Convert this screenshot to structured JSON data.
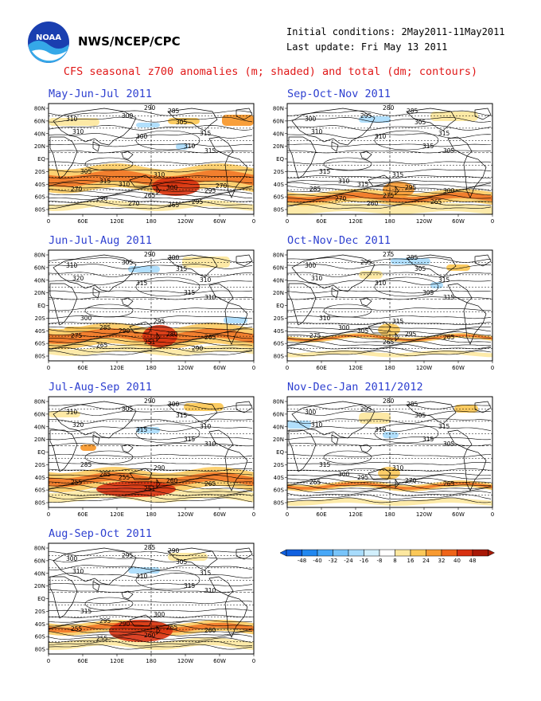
{
  "header": {
    "agency": "NWS/NCEP/CPC",
    "initial_conditions": "Initial conditions: 2May2011-11May2011",
    "last_update": "Last update: Fri May 13 2011",
    "logo_text": "NOAA",
    "title": "CFS seasonal z700 anomalies (m; shaded) and total (dm; contours)"
  },
  "axes": {
    "lat_labels": [
      "80N",
      "60N",
      "40N",
      "20N",
      "EQ",
      "20S",
      "40S",
      "60S",
      "80S"
    ],
    "lon_labels": [
      "0",
      "60E",
      "120E",
      "180",
      "120W",
      "60W",
      "0"
    ]
  },
  "panels": [
    {
      "title": "May-Jun-Jul 2011",
      "contour_labels": [
        "290",
        "285",
        "300",
        "310",
        "305",
        "310",
        "315",
        "300",
        "310",
        "315",
        "305",
        "310",
        "315",
        "310",
        "300",
        "295",
        "270",
        "265",
        "290",
        "295",
        "270",
        "265",
        "270"
      ]
    },
    {
      "title": "Sep-Oct-Nov 2011",
      "contour_labels": [
        "280",
        "285",
        "295",
        "300",
        "305",
        "310",
        "315",
        "310",
        "315",
        "305",
        "315",
        "315",
        "310",
        "315",
        "295",
        "300",
        "285",
        "275",
        "270",
        "265",
        "260"
      ]
    },
    {
      "title": "Jun-Jul-Aug 2011",
      "contour_labels": [
        "290",
        "300",
        "305",
        "310",
        "315",
        "320",
        "310",
        "315",
        "315",
        "310",
        "300",
        "295",
        "285",
        "290",
        "280",
        "265",
        "275",
        "251",
        "265",
        "290"
      ]
    },
    {
      "title": "Oct-Nov-Dec 2011",
      "contour_labels": [
        "275",
        "285",
        "295",
        "300",
        "305",
        "310",
        "315",
        "310",
        "305",
        "315",
        "310",
        "315",
        "300",
        "305",
        "295",
        "265",
        "275",
        "265"
      ]
    },
    {
      "title": "Jul-Aug-Sep 2011",
      "contour_labels": [
        "290",
        "300",
        "305",
        "310",
        "315",
        "320",
        "310",
        "315",
        "315",
        "310",
        "285",
        "290",
        "285",
        "255",
        "260",
        "265",
        "255",
        "251"
      ]
    },
    {
      "title": "Nov-Dec-Jan 2011/2012",
      "contour_labels": [
        "280",
        "285",
        "295",
        "300",
        "305",
        "310",
        "315",
        "310",
        "315",
        "305",
        "315",
        "310",
        "300",
        "295",
        "270",
        "265",
        "265"
      ]
    },
    {
      "title": "Aug-Sep-Oct 2011",
      "contour_labels": [
        "285",
        "290",
        "295",
        "300",
        "305",
        "310",
        "315",
        "310",
        "315",
        "310",
        "315",
        "300",
        "295",
        "290",
        "265",
        "260",
        "255",
        "260",
        "255"
      ]
    }
  ],
  "colorbar": {
    "tick_labels": [
      "-48",
      "-40",
      "-32",
      "-24",
      "-16",
      "-8",
      "8",
      "16",
      "24",
      "32",
      "40",
      "48"
    ],
    "colors": [
      "#1060e0",
      "#2288f0",
      "#48a8f8",
      "#78c4fa",
      "#a8dcfc",
      "#d2f0fd",
      "#ffffff",
      "#fde8a0",
      "#fbc858",
      "#f89a30",
      "#ef6418",
      "#d83010",
      "#a81806"
    ]
  }
}
